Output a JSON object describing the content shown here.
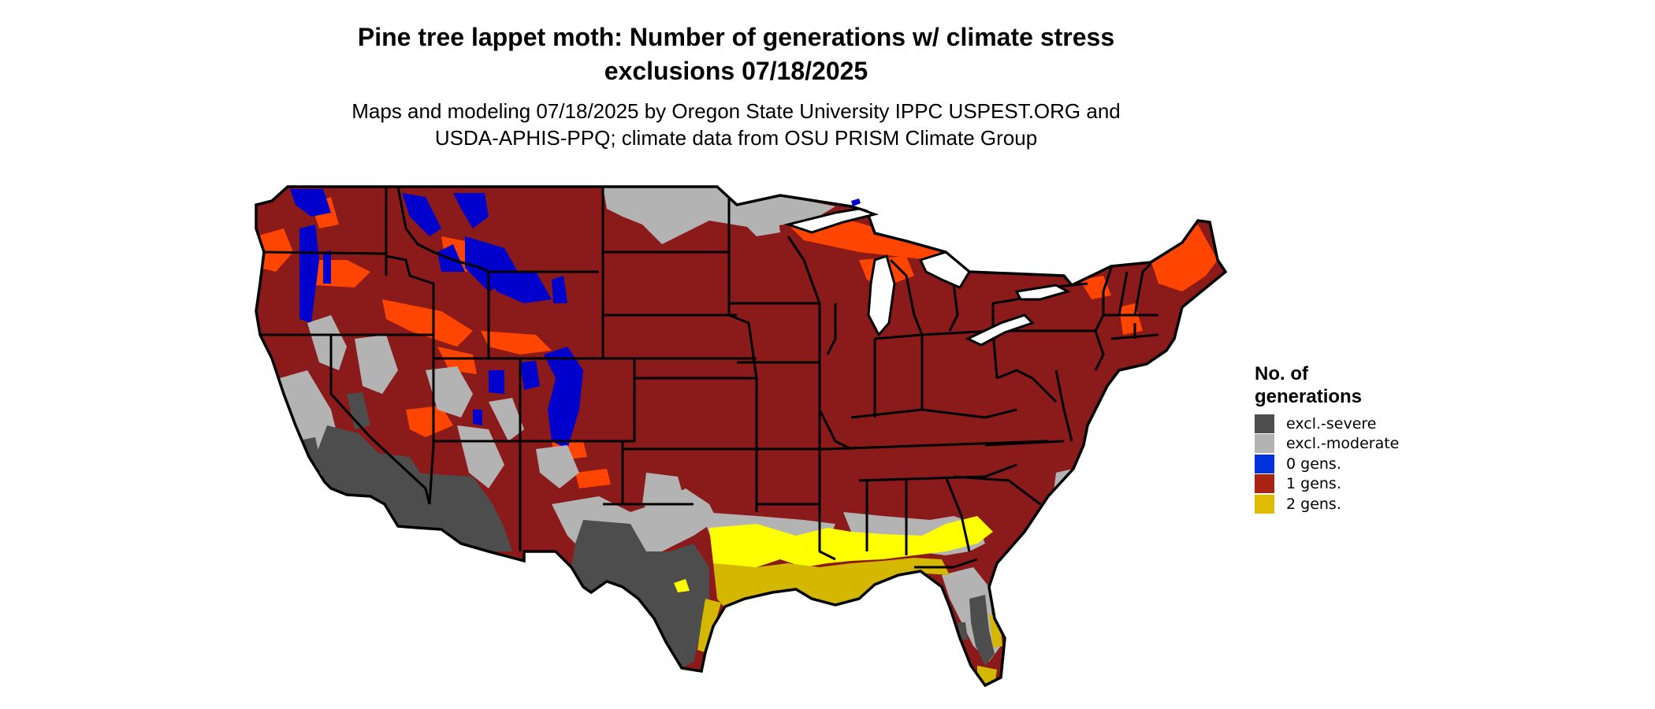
{
  "title_line1": "Pine tree lappet moth: Number of generations w/ climate stress",
  "title_line2": "exclusions 07/18/2025",
  "subtitle_line1": "Maps and modeling 07/18/2025 by Oregon State University IPPC USPEST.ORG and",
  "subtitle_line2": "USDA-APHIS-PPQ; climate data from OSU PRISM Climate Group",
  "legend": {
    "title_line1": "No. of",
    "title_line2": "generations",
    "items": [
      {
        "label": "excl.-severe",
        "color": "#4d4d4d"
      },
      {
        "label": "excl.-moderate",
        "color": "#b3b3b3"
      },
      {
        "label": "0 gens.",
        "color": "#0033dd"
      },
      {
        "label": "1 gens.",
        "color": "#aa2211"
      },
      {
        "label": "2 gens.",
        "color": "#ddbb00"
      }
    ]
  },
  "map_colors": {
    "one_gen": "#8b1a1a",
    "one_gen_orange": "#ff4500",
    "zero_gen": "#0000cc",
    "excl_moderate": "#b3b3b3",
    "excl_severe": "#4d4d4d",
    "two_gen_bright": "#ffff00",
    "two_gen": "#d4b800",
    "state_line": "#000000"
  }
}
